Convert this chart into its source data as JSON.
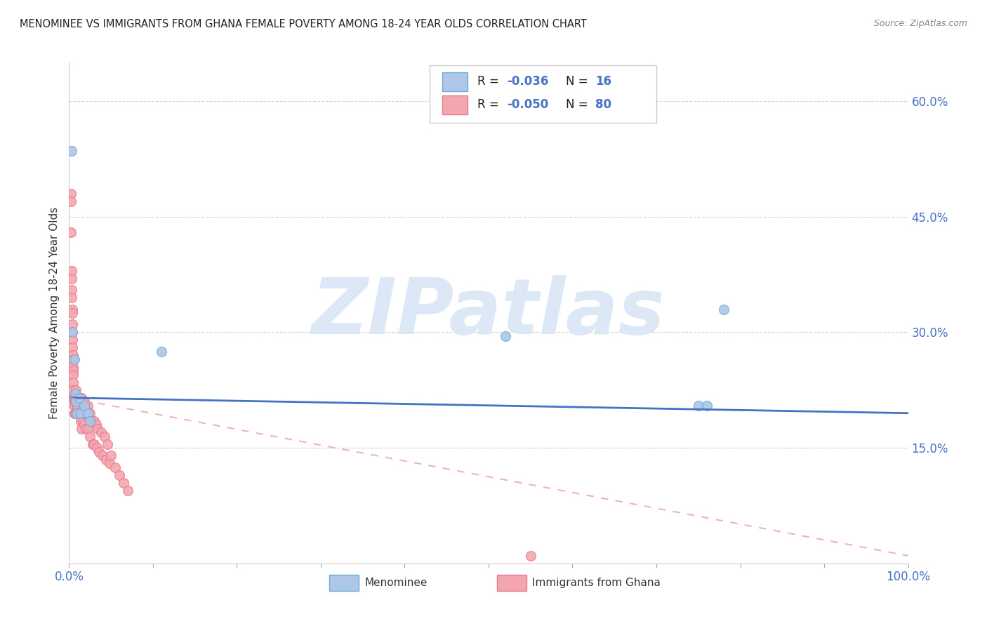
{
  "title": "MENOMINEE VS IMMIGRANTS FROM GHANA FEMALE POVERTY AMONG 18-24 YEAR OLDS CORRELATION CHART",
  "source": "Source: ZipAtlas.com",
  "ylabel": "Female Poverty Among 18-24 Year Olds",
  "xlim": [
    0,
    1.0
  ],
  "ylim": [
    0,
    0.65
  ],
  "xticks": [
    0.0,
    0.1,
    0.2,
    0.3,
    0.4,
    0.5,
    0.6,
    0.7,
    0.8,
    0.9,
    1.0
  ],
  "xticklabels": [
    "0.0%",
    "",
    "",
    "",
    "",
    "",
    "",
    "",
    "",
    "",
    "100.0%"
  ],
  "yticks": [
    0.0,
    0.15,
    0.3,
    0.45,
    0.6
  ],
  "yticklabels": [
    "",
    "15.0%",
    "30.0%",
    "45.0%",
    "60.0%"
  ],
  "menominee_color": "#aec6e8",
  "ghana_color": "#f4a6b0",
  "menominee_edge": "#6aaed6",
  "ghana_edge": "#e87a8a",
  "trend_blue": "#4472c4",
  "trend_pink": "#e8a0b0",
  "watermark": "ZIPatlas",
  "watermark_color": "#dce8f5",
  "background_color": "#ffffff",
  "menominee_x": [
    0.003,
    0.004,
    0.006,
    0.007,
    0.008,
    0.009,
    0.012,
    0.014,
    0.018,
    0.022,
    0.025,
    0.11,
    0.52,
    0.75,
    0.76,
    0.78
  ],
  "menominee_y": [
    0.535,
    0.3,
    0.265,
    0.22,
    0.21,
    0.195,
    0.215,
    0.195,
    0.205,
    0.195,
    0.185,
    0.275,
    0.295,
    0.205,
    0.205,
    0.33
  ],
  "ghana_x": [
    0.002,
    0.002,
    0.002,
    0.003,
    0.003,
    0.003,
    0.003,
    0.004,
    0.004,
    0.004,
    0.004,
    0.004,
    0.004,
    0.005,
    0.005,
    0.005,
    0.005,
    0.005,
    0.005,
    0.005,
    0.005,
    0.006,
    0.006,
    0.006,
    0.007,
    0.007,
    0.007,
    0.008,
    0.008,
    0.009,
    0.009,
    0.009,
    0.01,
    0.01,
    0.01,
    0.011,
    0.011,
    0.012,
    0.012,
    0.013,
    0.013,
    0.014,
    0.014,
    0.015,
    0.015,
    0.015,
    0.016,
    0.016,
    0.017,
    0.018,
    0.018,
    0.019,
    0.02,
    0.02,
    0.021,
    0.022,
    0.022,
    0.023,
    0.025,
    0.025,
    0.027,
    0.028,
    0.03,
    0.03,
    0.032,
    0.033,
    0.034,
    0.036,
    0.038,
    0.04,
    0.042,
    0.044,
    0.046,
    0.048,
    0.05,
    0.055,
    0.06,
    0.065,
    0.07,
    0.55
  ],
  "ghana_y": [
    0.48,
    0.47,
    0.43,
    0.38,
    0.37,
    0.355,
    0.345,
    0.33,
    0.325,
    0.31,
    0.3,
    0.29,
    0.28,
    0.27,
    0.265,
    0.255,
    0.25,
    0.245,
    0.235,
    0.225,
    0.215,
    0.21,
    0.205,
    0.195,
    0.215,
    0.21,
    0.195,
    0.225,
    0.215,
    0.215,
    0.205,
    0.195,
    0.215,
    0.205,
    0.195,
    0.215,
    0.195,
    0.215,
    0.195,
    0.21,
    0.195,
    0.21,
    0.185,
    0.215,
    0.195,
    0.175,
    0.21,
    0.185,
    0.195,
    0.21,
    0.18,
    0.195,
    0.205,
    0.175,
    0.195,
    0.205,
    0.175,
    0.195,
    0.195,
    0.165,
    0.185,
    0.155,
    0.185,
    0.155,
    0.18,
    0.15,
    0.175,
    0.145,
    0.17,
    0.14,
    0.165,
    0.135,
    0.155,
    0.13,
    0.14,
    0.125,
    0.115,
    0.105,
    0.095,
    0.01
  ],
  "blue_trend_x": [
    0.0,
    1.0
  ],
  "blue_trend_y": [
    0.215,
    0.195
  ],
  "pink_trend_x": [
    0.0,
    1.0
  ],
  "pink_trend_y": [
    0.215,
    0.01
  ],
  "title_fontsize": 10.5,
  "axis_color": "#4472c4",
  "dot_size": 100,
  "grid_color": "#d0d0d0"
}
